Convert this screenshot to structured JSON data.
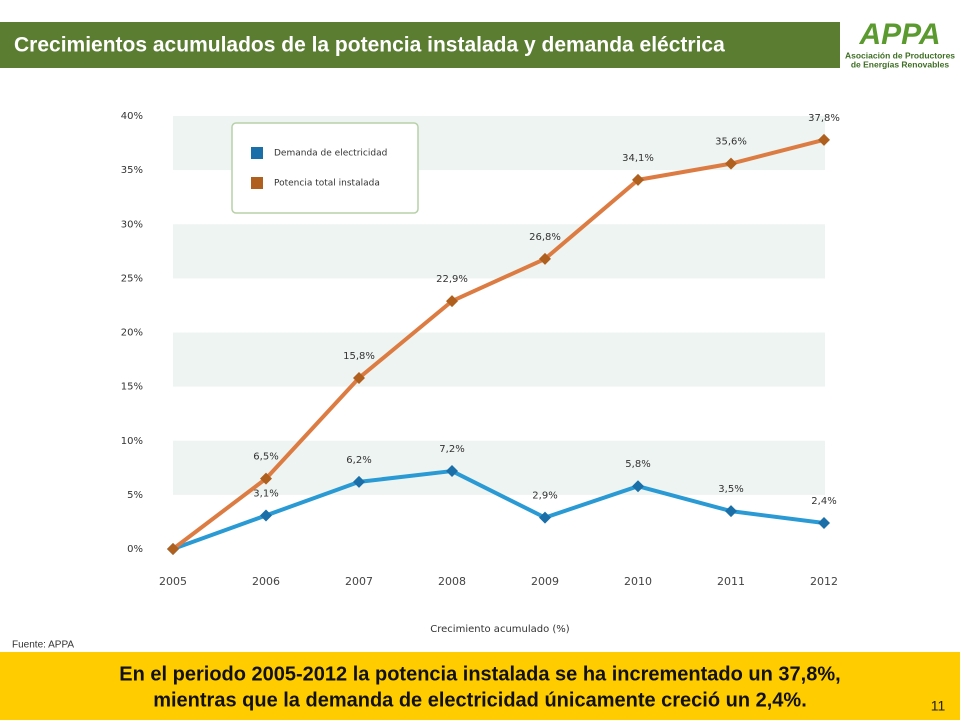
{
  "header": {
    "title": "Crecimientos acumulados de la potencia instalada y demanda eléctrica",
    "logo": "APPA",
    "logo_subtitle_1": "Asociación de Productores",
    "logo_subtitle_2": "de Energías Renovables"
  },
  "chart_data": {
    "type": "line",
    "x_label": "Crecimiento acumulado  (%)",
    "categories": [
      "2005",
      "2006",
      "2007",
      "2008",
      "2009",
      "2010",
      "2011",
      "2012"
    ],
    "series": [
      {
        "name": "Demanda de electricidad",
        "color": "#2a9ad4",
        "marker_color": "#1a6fa8",
        "values": [
          0,
          3.1,
          6.2,
          7.2,
          2.9,
          5.8,
          3.5,
          2.4
        ],
        "value_labels": [
          null,
          "3,1%",
          "6,2%",
          "7,2%",
          "2,9%",
          "5,8%",
          "3,5%",
          "2,4%"
        ]
      },
      {
        "name": "Potencia total instalada",
        "color": "#dc7c42",
        "marker_color": "#b0601e",
        "values": [
          0,
          6.5,
          15.8,
          22.9,
          26.8,
          34.1,
          35.6,
          37.8
        ],
        "value_labels": [
          null,
          "6,5%",
          "15,8%",
          "22,9%",
          "26,8%",
          "34,1%",
          "35,6%",
          "37,8%"
        ]
      }
    ],
    "ylim": [
      0,
      40
    ],
    "yticks": [
      {
        "value": 0,
        "label": "0%"
      },
      {
        "value": 5,
        "label": "5%"
      },
      {
        "value": 10,
        "label": "10%"
      },
      {
        "value": 15,
        "label": "15%"
      },
      {
        "value": 20,
        "label": "20%"
      },
      {
        "value": 25,
        "label": "25%"
      },
      {
        "value": 30,
        "label": "30%"
      },
      {
        "value": 35,
        "label": "35%"
      },
      {
        "value": 40,
        "label": "40%"
      }
    ],
    "legend": "upper left"
  },
  "footer": {
    "source": "Fuente: APPA",
    "line_1": "En el periodo 2005-2012 la potencia instalada se ha incrementado un 37,8%,",
    "line_2": "mientras que la demanda de electricidad únicamente creció un 2,4%.",
    "page": "11"
  }
}
